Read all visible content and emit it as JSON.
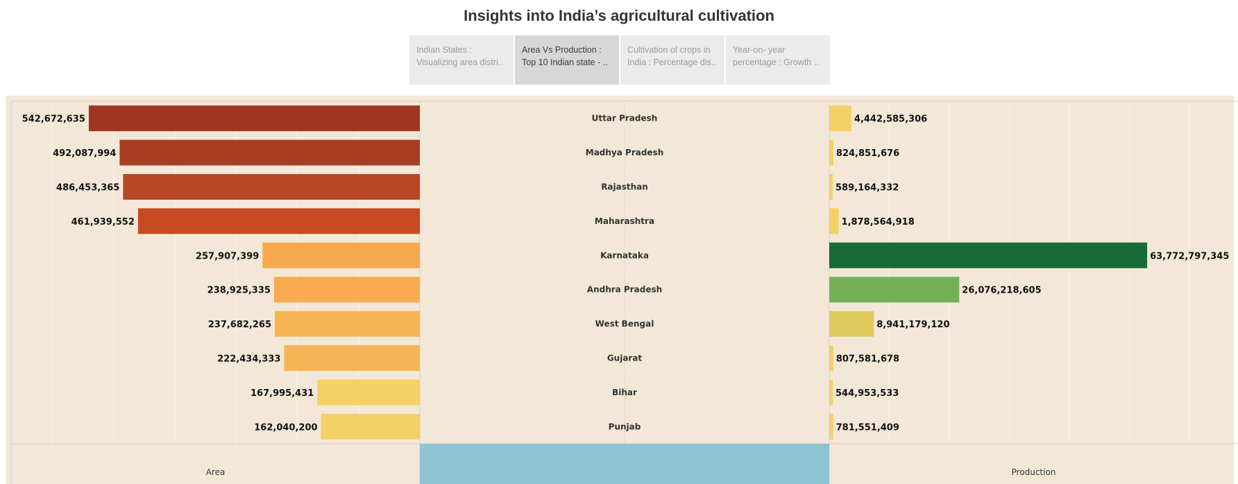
{
  "page": {
    "title": "Insights into India’s agricultural cultivation"
  },
  "tabs": [
    {
      "line1": "Indian States :",
      "line2": "Visualizing area distri..",
      "active": false
    },
    {
      "line1": "Area Vs Production :",
      "line2": "Top 10 Indian state - ..",
      "active": true
    },
    {
      "line1": "Cultivation of crops in",
      "line2": "India : Percentage dis..",
      "active": false
    },
    {
      "line1": "Year-on- year",
      "line2": "percentage : Growth ..",
      "active": false
    }
  ],
  "chart_data": {
    "type": "bar",
    "layout": "butterfly",
    "categories": [
      "Uttar Pradesh",
      "Madhya Pradesh",
      "Rajasthan",
      "Maharashtra",
      "Karnataka",
      "Andhra Pradesh",
      "West Bengal",
      "Gujarat",
      "Bihar",
      "Punjab"
    ],
    "series": [
      {
        "name": "Area",
        "direction": "left",
        "values": [
          542672635,
          492087994,
          486453365,
          461939552,
          257907399,
          238925335,
          237682265,
          222434333,
          167995431,
          162040200
        ],
        "labels": [
          "542,672,635",
          "492,087,994",
          "486,453,365",
          "461,939,552",
          "257,907,399",
          "238,925,335",
          "237,682,265",
          "222,434,333",
          "167,995,431",
          "162,040,200"
        ],
        "colors": [
          "#9e3622",
          "#a93d24",
          "#b94624",
          "#c84a22",
          "#f7a84e",
          "#f8ac4f",
          "#f8b455",
          "#f7b457",
          "#f4d065",
          "#f4d065"
        ],
        "xlim": [
          0,
          670000000
        ]
      },
      {
        "name": "Production",
        "direction": "right",
        "values": [
          4442585306,
          824851676,
          589164332,
          1878564918,
          63772797345,
          26076218605,
          8941179120,
          807581678,
          544953533,
          781551409
        ],
        "labels": [
          "4,442,585,306",
          "824,851,676",
          "589,164,332",
          "1,878,564,918",
          "63,772,797,345",
          "26,076,218,605",
          "8,941,179,120",
          "807,581,678",
          "544,953,533",
          "781,551,409"
        ],
        "colors": [
          "#f4d065",
          "#f4d065",
          "#f4d065",
          "#f4d065",
          "#176b38",
          "#74b158",
          "#dfca5e",
          "#f4d065",
          "#f4d065",
          "#f4d065"
        ],
        "xlim": [
          0,
          82000000000
        ]
      }
    ],
    "footer": {
      "left_label": "Area",
      "right_label": "Production",
      "center_color": "#8ec4d3"
    },
    "grid": true,
    "background": "#f3e8d8"
  }
}
